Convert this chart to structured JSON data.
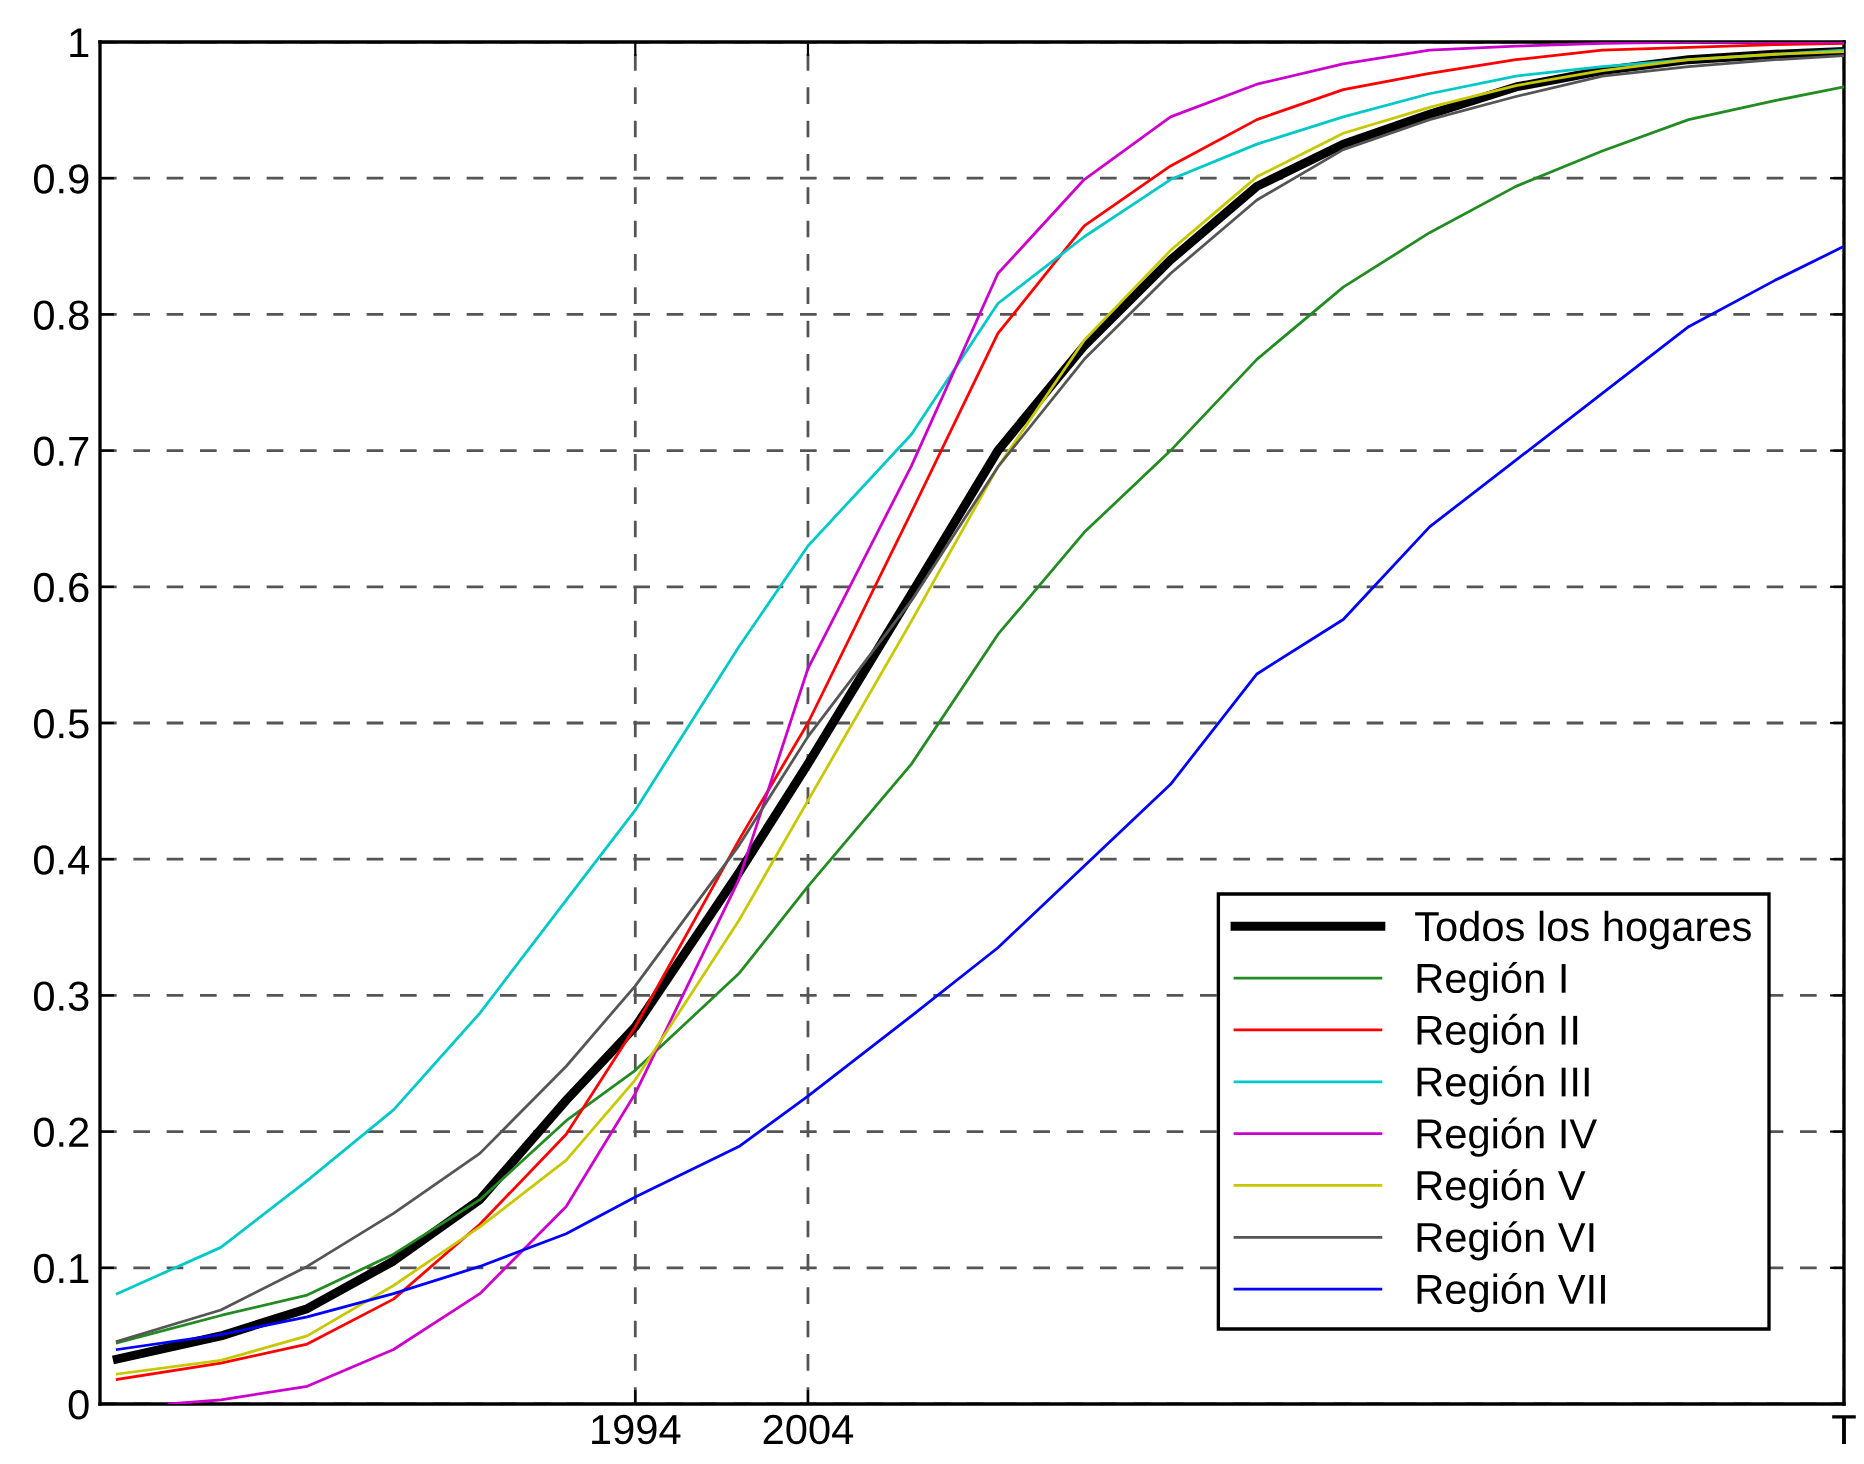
{
  "chart_data": {
    "type": "line",
    "x": [
      1964,
      1970,
      1975,
      1980,
      1985,
      1990,
      1994,
      2000,
      2004,
      2010,
      2015,
      2020,
      2025,
      2030,
      2035,
      2040,
      2045,
      2050,
      2055,
      2060,
      2064
    ],
    "series": [
      {
        "name": "Todos los hogares",
        "color": "#000000",
        "values": [
          0.033,
          0.05,
          0.07,
          0.105,
          0.15,
          0.223,
          0.277,
          0.39,
          0.47,
          0.595,
          0.7,
          0.777,
          0.84,
          0.894,
          0.925,
          0.947,
          0.967,
          0.979,
          0.987,
          0.991,
          0.993
        ]
      },
      {
        "name": "Región I",
        "color": "#228b22",
        "values": [
          0.045,
          0.065,
          0.08,
          0.11,
          0.15,
          0.208,
          0.245,
          0.316,
          0.38,
          0.47,
          0.565,
          0.64,
          0.7,
          0.767,
          0.82,
          0.86,
          0.894,
          0.92,
          0.943,
          0.957,
          0.967
        ]
      },
      {
        "name": "Región II",
        "color": "#ff0000",
        "values": [
          0.018,
          0.03,
          0.044,
          0.077,
          0.132,
          0.198,
          0.277,
          0.414,
          0.5,
          0.655,
          0.786,
          0.865,
          0.909,
          0.943,
          0.965,
          0.977,
          0.987,
          0.994,
          0.996,
          0.998,
          0.999
        ]
      },
      {
        "name": "Región III",
        "color": "#00c8c8",
        "values": [
          0.081,
          0.115,
          0.164,
          0.216,
          0.287,
          0.37,
          0.436,
          0.556,
          0.63,
          0.712,
          0.808,
          0.857,
          0.899,
          0.925,
          0.945,
          0.962,
          0.975,
          0.982,
          0.987,
          0.991,
          0.994
        ]
      },
      {
        "name": "Región IV",
        "color": "#cc00cc",
        "x": [
          1967,
          1970,
          1975,
          1980,
          1985,
          1990,
          1994,
          2000,
          2004,
          2010,
          2015,
          2020,
          2025,
          2030,
          2035,
          2040,
          2045,
          2050,
          2055,
          2060,
          2064
        ],
        "values": [
          0.0,
          0.003,
          0.013,
          0.04,
          0.081,
          0.145,
          0.228,
          0.385,
          0.54,
          0.689,
          0.83,
          0.899,
          0.945,
          0.969,
          0.984,
          0.994,
          0.997,
          0.999,
          1.0,
          1.0,
          1.0
        ]
      },
      {
        "name": "Región V",
        "color": "#c8c800",
        "values": [
          0.022,
          0.032,
          0.05,
          0.087,
          0.13,
          0.179,
          0.238,
          0.355,
          0.443,
          0.575,
          0.688,
          0.781,
          0.847,
          0.901,
          0.933,
          0.952,
          0.968,
          0.979,
          0.987,
          0.991,
          0.993
        ]
      },
      {
        "name": "Región VI",
        "color": "#555555",
        "values": [
          0.046,
          0.069,
          0.101,
          0.14,
          0.184,
          0.248,
          0.307,
          0.41,
          0.49,
          0.59,
          0.688,
          0.767,
          0.83,
          0.884,
          0.921,
          0.943,
          0.96,
          0.975,
          0.982,
          0.987,
          0.99
        ]
      },
      {
        "name": "Región VII",
        "color": "#0000ff",
        "values": [
          0.04,
          0.051,
          0.064,
          0.081,
          0.101,
          0.125,
          0.152,
          0.189,
          0.226,
          0.285,
          0.335,
          0.395,
          0.455,
          0.536,
          0.576,
          0.644,
          0.693,
          0.742,
          0.791,
          0.825,
          0.85
        ]
      }
    ],
    "xlim": [
      1963,
      2064
    ],
    "xticks": [
      1994,
      2004,
      {
        "value": 2064,
        "label": "T"
      }
    ],
    "ylim": [
      0,
      1
    ],
    "yticks": [
      0,
      0.1,
      0.2,
      0.3,
      0.4,
      0.5,
      0.6,
      0.7,
      0.8,
      0.9,
      1
    ],
    "grid": true,
    "legend": "bottom right",
    "line_style": "solid",
    "marker": "none"
  }
}
